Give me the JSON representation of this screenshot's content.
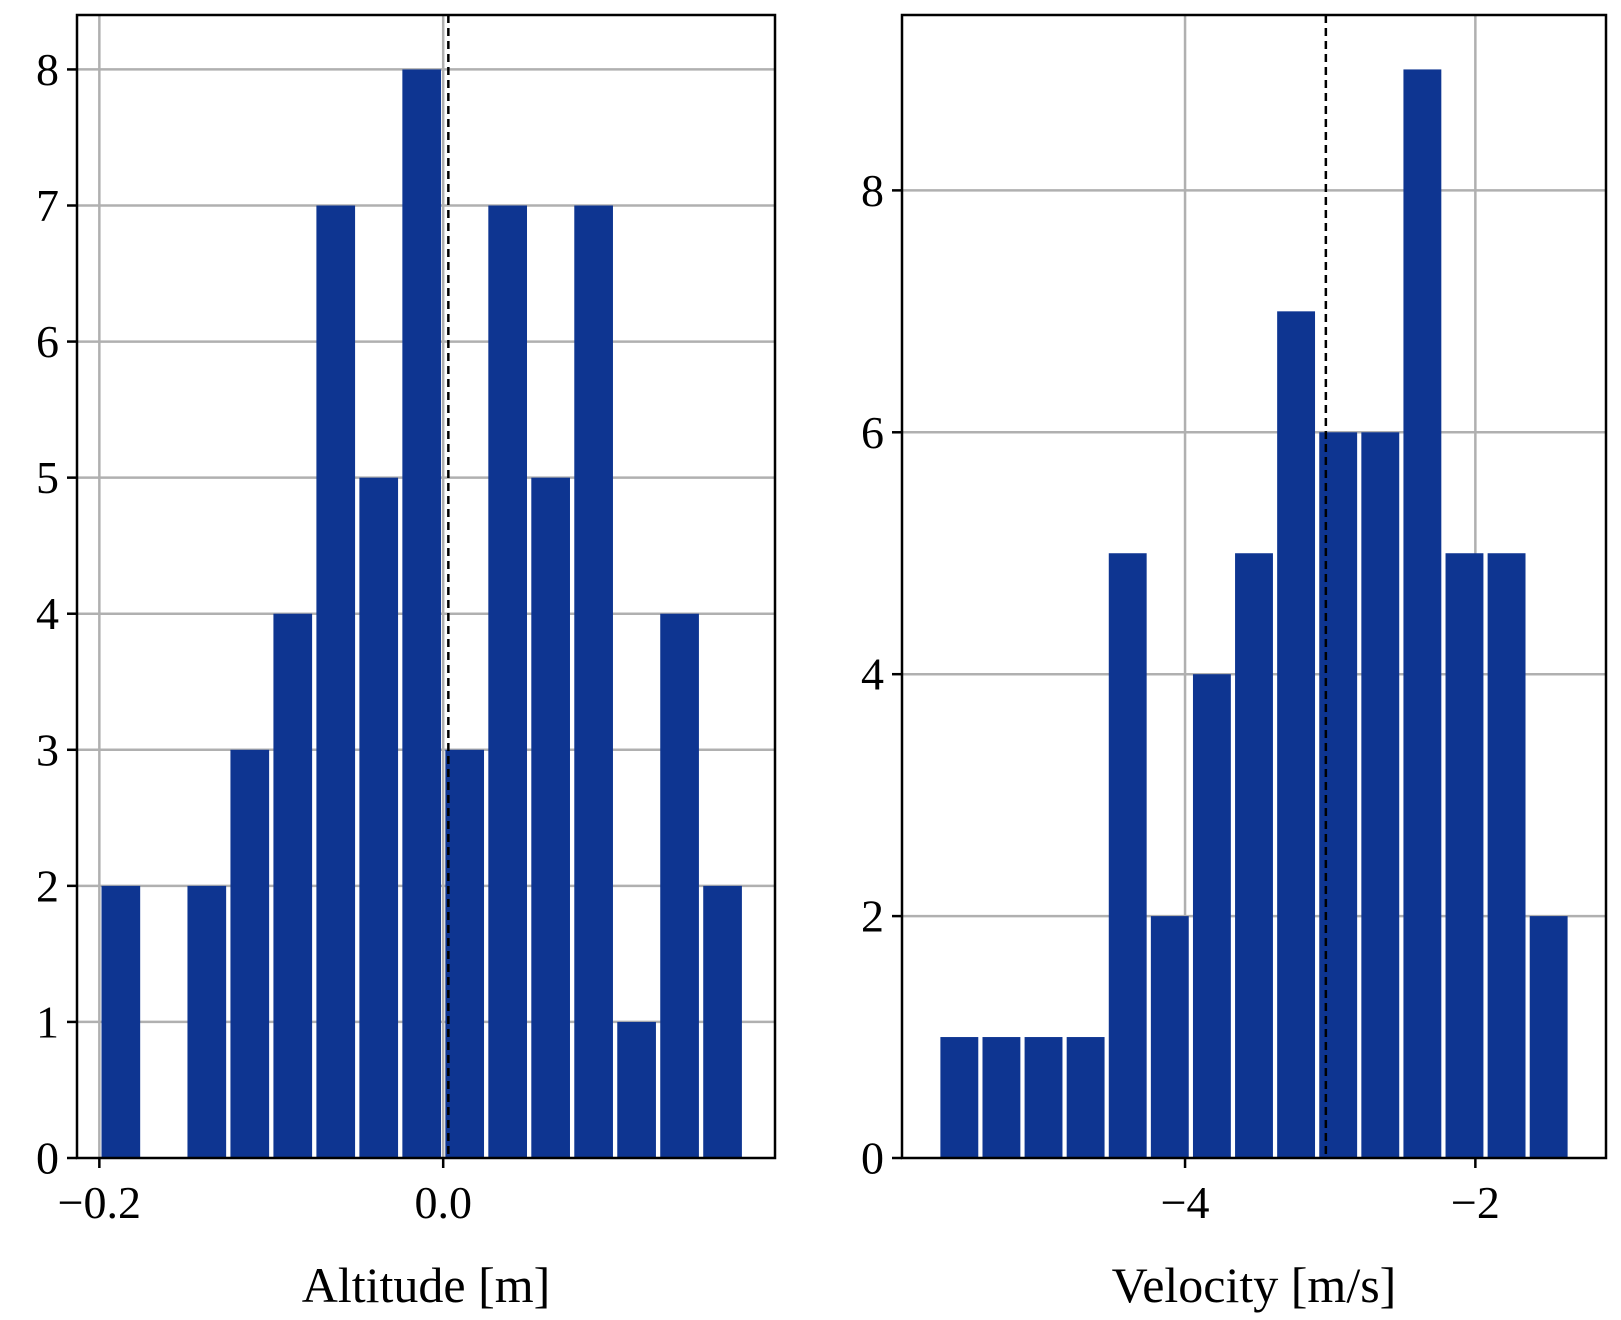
{
  "colors": {
    "bar": "#0e3591",
    "grid": "#b0b0b0",
    "axis": "#000000",
    "mean_line": "#000000"
  },
  "chart_data": [
    {
      "type": "bar",
      "title": "",
      "xlabel": "Altitude [m]",
      "ylabel": "",
      "xlim": [
        -0.213,
        0.193
      ],
      "ylim": [
        0,
        8.4
      ],
      "xticks": [
        -0.2,
        0.0
      ],
      "xtick_labels": [
        "−0.2",
        "0.0"
      ],
      "yticks": [
        0,
        1,
        2,
        3,
        4,
        5,
        6,
        7,
        8
      ],
      "ytick_labels": [
        "0",
        "1",
        "2",
        "3",
        "4",
        "5",
        "6",
        "7",
        "8"
      ],
      "grid": true,
      "bin_edges": [
        -0.2,
        -0.175,
        -0.15,
        -0.125,
        -0.1,
        -0.075,
        -0.05,
        -0.025,
        0.0,
        0.025,
        0.05,
        0.075,
        0.1,
        0.125,
        0.15,
        0.175
      ],
      "values": [
        2,
        0,
        2,
        3,
        4,
        7,
        5,
        8,
        3,
        7,
        5,
        7,
        1,
        4,
        2
      ],
      "mean_line_x": 0.003
    },
    {
      "type": "bar",
      "title": "",
      "xlabel": "Velocity [m/s]",
      "ylabel": "",
      "xlim": [
        -5.95,
        -1.1
      ],
      "ylim": [
        0,
        9.45
      ],
      "xticks": [
        -4,
        -2
      ],
      "xtick_labels": [
        "−4",
        "−2"
      ],
      "yticks": [
        0,
        2,
        4,
        6,
        8
      ],
      "ytick_labels": [
        "0",
        "2",
        "4",
        "6",
        "8"
      ],
      "grid": true,
      "bin_edges": [
        -5.7,
        -5.41,
        -5.12,
        -4.83,
        -4.54,
        -4.25,
        -3.96,
        -3.67,
        -3.38,
        -3.09,
        -2.8,
        -2.51,
        -2.22,
        -1.93,
        -1.64,
        -1.35
      ],
      "values": [
        1,
        1,
        1,
        1,
        5,
        2,
        4,
        5,
        7,
        6,
        6,
        9,
        5,
        5,
        2
      ],
      "mean_line_x": -3.03
    }
  ]
}
